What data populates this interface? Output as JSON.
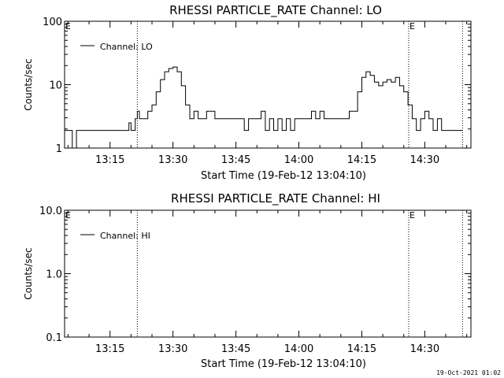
{
  "chart_data": [
    {
      "type": "line",
      "title": "RHESSI PARTICLE_RATE Channel: LO",
      "xlabel": "Start Time (19-Feb-12 13:04:10)",
      "ylabel": "Counts/sec",
      "yscale": "log",
      "ylim": [
        1,
        100
      ],
      "xlim": [
        "13:04:10",
        "14:41:00"
      ],
      "x_ticks": [
        "13:15",
        "13:30",
        "13:45",
        "14:00",
        "14:15",
        "14:30"
      ],
      "y_ticks": [
        "1",
        "10",
        "100"
      ],
      "legend": "top-left",
      "grid": false,
      "markers": [
        {
          "time": "13:21:30",
          "label": ""
        },
        {
          "time": "14:26:10",
          "label": "E"
        },
        {
          "time": "14:39:00",
          "label": ""
        }
      ],
      "corner_label": "E",
      "series": [
        {
          "name": "Channel: LO",
          "color": "#000000",
          "x": [
            "13:04:10",
            "13:05:00",
            "13:06:00",
            "13:07:00",
            "13:08:00",
            "13:10:00",
            "13:12:00",
            "13:14:00",
            "13:15:00",
            "13:16:00",
            "13:17:00",
            "13:18:00",
            "13:19:00",
            "13:19:30",
            "13:20:00",
            "13:20:30",
            "13:21:00",
            "13:21:30",
            "13:22:00",
            "13:23:00",
            "13:24:00",
            "13:25:00",
            "13:26:00",
            "13:27:00",
            "13:28:00",
            "13:29:00",
            "13:30:00",
            "13:31:00",
            "13:32:00",
            "13:33:00",
            "13:34:00",
            "13:35:00",
            "13:36:00",
            "13:37:00",
            "13:38:00",
            "13:40:00",
            "13:42:00",
            "13:44:00",
            "13:45:00",
            "13:46:00",
            "13:47:00",
            "13:48:00",
            "13:49:00",
            "13:50:00",
            "13:51:00",
            "13:52:00",
            "13:53:00",
            "13:54:00",
            "13:55:00",
            "13:56:00",
            "13:57:00",
            "13:58:00",
            "13:59:00",
            "14:00:00",
            "14:01:00",
            "14:02:00",
            "14:03:00",
            "14:04:00",
            "14:05:00",
            "14:06:00",
            "14:07:00",
            "14:08:00",
            "14:09:00",
            "14:10:00",
            "14:11:00",
            "14:12:00",
            "14:13:00",
            "14:14:00",
            "14:15:00",
            "14:16:00",
            "14:17:00",
            "14:18:00",
            "14:19:00",
            "14:20:00",
            "14:21:00",
            "14:22:00",
            "14:23:00",
            "14:24:00",
            "14:25:00",
            "14:26:00",
            "14:27:00",
            "14:28:00",
            "14:29:00",
            "14:30:00",
            "14:31:00",
            "14:32:00",
            "14:33:00",
            "14:34:00",
            "14:35:00",
            "14:36:00",
            "14:37:00",
            "14:38:00",
            "14:39:00"
          ],
          "values": [
            1.9,
            1.9,
            1.0,
            1.9,
            1.9,
            1.9,
            1.9,
            1.9,
            1.9,
            1.9,
            1.9,
            1.9,
            1.9,
            2.5,
            1.9,
            1.9,
            2.9,
            3.8,
            2.9,
            2.9,
            3.8,
            4.8,
            7.7,
            12,
            16,
            18,
            19,
            16,
            9.6,
            4.8,
            2.9,
            3.8,
            2.9,
            2.9,
            3.8,
            2.9,
            2.9,
            2.9,
            2.9,
            2.9,
            1.9,
            2.9,
            2.9,
            2.9,
            3.8,
            1.9,
            2.9,
            1.9,
            2.9,
            1.9,
            2.9,
            1.9,
            2.9,
            2.9,
            2.9,
            2.9,
            3.8,
            2.9,
            3.8,
            2.9,
            2.9,
            2.9,
            2.9,
            2.9,
            2.9,
            3.8,
            3.8,
            7.7,
            13,
            16,
            14,
            11,
            9.6,
            11,
            12,
            11,
            13,
            9.6,
            7.7,
            4.8,
            2.9,
            1.9,
            2.9,
            3.8,
            2.9,
            1.9,
            2.9,
            1.9,
            1.9,
            1.9,
            1.9,
            1.9,
            1.9
          ]
        }
      ]
    },
    {
      "type": "line",
      "title": "RHESSI PARTICLE_RATE Channel: HI",
      "xlabel": "Start Time (19-Feb-12 13:04:10)",
      "ylabel": "Counts/sec",
      "yscale": "log",
      "ylim": [
        0.1,
        10
      ],
      "xlim": [
        "13:04:10",
        "14:41:00"
      ],
      "x_ticks": [
        "13:15",
        "13:30",
        "13:45",
        "14:00",
        "14:15",
        "14:30"
      ],
      "y_ticks": [
        "0.1",
        "1.0",
        "10.0"
      ],
      "legend": "top-left",
      "grid": false,
      "markers": [
        {
          "time": "13:21:30",
          "label": ""
        },
        {
          "time": "14:26:10",
          "label": "E"
        },
        {
          "time": "14:39:00",
          "label": ""
        }
      ],
      "corner_label": "E",
      "series": [
        {
          "name": "Channel: HI",
          "color": "#000000",
          "x": [],
          "values": []
        }
      ]
    }
  ],
  "footer": "19-Oct-2021 01:02"
}
